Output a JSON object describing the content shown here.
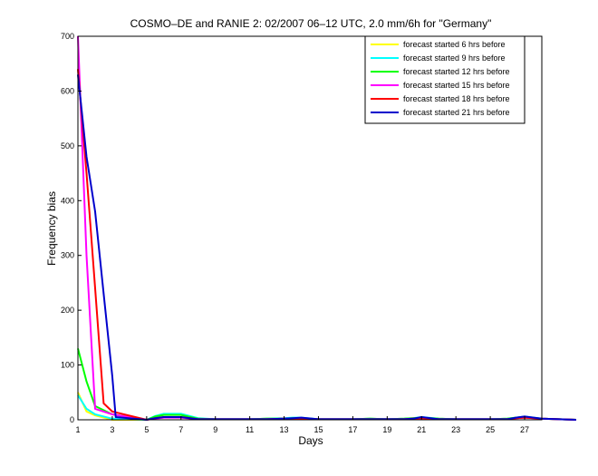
{
  "chart_data": {
    "type": "line",
    "title": "COSMO–DE and RANIE 2: 02/2007 06–12 UTC, 2.0 mm/6h for \"Germany\"",
    "xlabel": "Days",
    "ylabel": "Frequency bias",
    "xlim": [
      1,
      28
    ],
    "ylim": [
      0,
      700
    ],
    "xticks": [
      1,
      3,
      5,
      7,
      9,
      11,
      13,
      15,
      17,
      19,
      21,
      23,
      25,
      27
    ],
    "yticks": [
      0,
      100,
      200,
      300,
      400,
      500,
      600,
      700
    ],
    "grid": false,
    "legend_position": "top-right",
    "series": [
      {
        "name": "forecast started 6 hrs before",
        "color": "#ffff00",
        "x": [
          1,
          1.5,
          2,
          3,
          5,
          5.5,
          6,
          7,
          8,
          9,
          11,
          12,
          13,
          13.5,
          14,
          15,
          17,
          18,
          19,
          20,
          20.5,
          21,
          22,
          23,
          25,
          26,
          26.5,
          27,
          28,
          29,
          30
        ],
        "y": [
          50,
          15,
          8,
          0,
          0,
          6,
          10,
          10,
          2,
          1,
          1,
          2,
          2,
          3,
          3,
          1,
          1,
          2,
          1,
          2,
          3,
          4,
          2,
          1,
          1,
          2,
          4,
          5,
          2,
          1,
          0
        ]
      },
      {
        "name": "forecast started 9 hrs before",
        "color": "#00ffff",
        "x": [
          1,
          1.5,
          2,
          3,
          5,
          5.5,
          6,
          7,
          8,
          9,
          11,
          12,
          13,
          13.5,
          14,
          15,
          17,
          18,
          19,
          20,
          20.5,
          21,
          22,
          23,
          25,
          26,
          26.5,
          27,
          28,
          29,
          30
        ],
        "y": [
          45,
          20,
          10,
          2,
          0,
          7,
          11,
          11,
          3,
          1,
          1,
          2,
          3,
          4,
          4,
          1,
          1,
          2,
          1,
          2,
          3,
          5,
          2,
          1,
          1,
          2,
          4,
          6,
          2,
          1,
          0
        ]
      },
      {
        "name": "forecast started 12 hrs before",
        "color": "#00ff00",
        "x": [
          1,
          1.5,
          2,
          3,
          5,
          5.5,
          6,
          7,
          8,
          9,
          11,
          12,
          13,
          13.5,
          14,
          15,
          17,
          18,
          19,
          20,
          20.5,
          21,
          22,
          23,
          25,
          26,
          26.5,
          27,
          28,
          29,
          30
        ],
        "y": [
          130,
          70,
          25,
          10,
          0,
          6,
          9,
          9,
          2,
          1,
          1,
          2,
          2,
          3,
          3,
          1,
          1,
          2,
          1,
          2,
          3,
          4,
          2,
          1,
          1,
          2,
          4,
          5,
          2,
          1,
          0
        ]
      },
      {
        "name": "forecast started 15 hrs before",
        "color": "#ff00ff",
        "x": [
          1,
          1.5,
          2,
          3,
          5,
          5.5,
          6,
          7,
          8,
          9,
          11,
          12,
          13,
          13.5,
          14,
          15,
          17,
          18,
          19,
          20,
          20.5,
          21,
          22,
          23,
          25,
          26,
          26.5,
          27,
          28,
          29,
          30
        ],
        "y": [
          700,
          300,
          20,
          10,
          0,
          2,
          4,
          4,
          1,
          1,
          1,
          1,
          2,
          2,
          2,
          1,
          1,
          1,
          1,
          1,
          2,
          3,
          1,
          1,
          1,
          1,
          3,
          4,
          2,
          1,
          0
        ]
      },
      {
        "name": "forecast started 18 hrs before",
        "color": "#ff0000",
        "x": [
          1,
          1.5,
          2,
          2.5,
          3,
          5,
          5.5,
          6,
          7,
          8,
          9,
          11,
          12,
          13,
          13.5,
          14,
          15,
          17,
          18,
          19,
          20,
          20.5,
          21,
          22,
          23,
          25,
          26,
          26.5,
          27,
          28,
          29,
          30
        ],
        "y": [
          640,
          450,
          240,
          30,
          15,
          0,
          3,
          5,
          5,
          1,
          1,
          1,
          1,
          2,
          2,
          2,
          1,
          1,
          1,
          1,
          1,
          2,
          3,
          1,
          1,
          1,
          1,
          3,
          4,
          2,
          1,
          0
        ]
      },
      {
        "name": "forecast started 21 hrs before",
        "color": "#0000cc",
        "x": [
          1,
          1.5,
          2,
          2.5,
          3,
          3.2,
          5,
          5.5,
          6,
          7,
          8,
          9,
          11,
          12,
          13,
          13.5,
          14,
          15,
          17,
          18,
          19,
          20,
          20.5,
          21,
          22,
          23,
          25,
          26,
          26.5,
          27,
          28,
          29,
          30
        ],
        "y": [
          630,
          480,
          380,
          230,
          80,
          5,
          0,
          3,
          5,
          5,
          1,
          1,
          1,
          1,
          2,
          3,
          4,
          1,
          1,
          1,
          1,
          1,
          2,
          5,
          1,
          1,
          1,
          1,
          4,
          6,
          2,
          1,
          0
        ]
      }
    ]
  }
}
